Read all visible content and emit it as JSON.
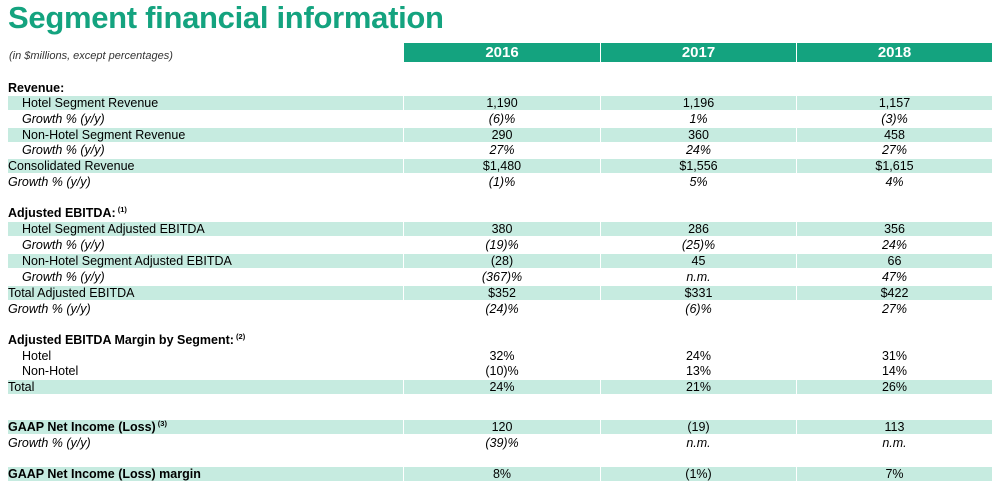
{
  "title": "Segment financial information",
  "units_note": "(in $millions, except percentages)",
  "columns": [
    "2016",
    "2017",
    "2018"
  ],
  "rows": [
    {
      "label": "Revenue:",
      "sup": "",
      "values": [
        "",
        "",
        ""
      ],
      "style": "section"
    },
    {
      "label": "Hotel Segment Revenue",
      "sup": "",
      "values": [
        "1,190",
        "1,196",
        "1,157"
      ],
      "style": "indent shade"
    },
    {
      "label": "Growth % (y/y)",
      "sup": "",
      "values": [
        "(6)%",
        "1%",
        "(3)%"
      ],
      "style": "indent italic"
    },
    {
      "label": "Non-Hotel Segment Revenue",
      "sup": "",
      "values": [
        "290",
        "360",
        "458"
      ],
      "style": "indent shade"
    },
    {
      "label": "Growth % (y/y)",
      "sup": "",
      "values": [
        "27%",
        "24%",
        "27%"
      ],
      "style": "indent italic"
    },
    {
      "label": "Consolidated Revenue",
      "sup": "",
      "values": [
        "$1,480",
        "$1,556",
        "$1,615"
      ],
      "style": "shade"
    },
    {
      "label": "Growth % (y/y)",
      "sup": "",
      "values": [
        "(1)%",
        "5%",
        "4%"
      ],
      "style": "italic"
    },
    {
      "label": "Adjusted EBITDA:",
      "sup": "(1)",
      "values": [
        "",
        "",
        ""
      ],
      "style": "section"
    },
    {
      "label": "Hotel Segment Adjusted EBITDA",
      "sup": "",
      "values": [
        "380",
        "286",
        "356"
      ],
      "style": "indent shade"
    },
    {
      "label": "Growth % (y/y)",
      "sup": "",
      "values": [
        "(19)%",
        "(25)%",
        "24%"
      ],
      "style": "indent italic"
    },
    {
      "label": "Non-Hotel Segment Adjusted EBITDA",
      "sup": "",
      "values": [
        "(28)",
        "45",
        "66"
      ],
      "style": "indent shade"
    },
    {
      "label": "Growth % (y/y)",
      "sup": "",
      "values": [
        "(367)%",
        "n.m.",
        "47%"
      ],
      "style": "indent italic"
    },
    {
      "label": "Total Adjusted EBITDA",
      "sup": "",
      "values": [
        "$352",
        "$331",
        "$422"
      ],
      "style": "shade"
    },
    {
      "label": "Growth % (y/y)",
      "sup": "",
      "values": [
        "(24)%",
        "(6)%",
        "27%"
      ],
      "style": "italic"
    },
    {
      "label": "Adjusted EBITDA Margin by Segment:",
      "sup": "(2)",
      "values": [
        "",
        "",
        ""
      ],
      "style": "section"
    },
    {
      "label": "Hotel",
      "sup": "",
      "values": [
        "32%",
        "24%",
        "31%"
      ],
      "style": "indent"
    },
    {
      "label": "Non-Hotel",
      "sup": "",
      "values": [
        "(10)%",
        "13%",
        "14%"
      ],
      "style": "indent"
    },
    {
      "label": "Total",
      "sup": "",
      "values": [
        "24%",
        "21%",
        "26%"
      ],
      "style": "shade"
    },
    {
      "label": "GAAP Net Income (Loss)",
      "sup": "(3)",
      "values": [
        "120",
        "(19)",
        "113"
      ],
      "style": "bold shade"
    },
    {
      "label": "Growth % (y/y)",
      "sup": "",
      "values": [
        "(39)%",
        "n.m.",
        "n.m."
      ],
      "style": "italic"
    },
    {
      "label": "GAAP Net Income (Loss) margin",
      "sup": "",
      "values": [
        "8%",
        "(1%)",
        "7%"
      ],
      "style": "bold shade"
    }
  ]
}
